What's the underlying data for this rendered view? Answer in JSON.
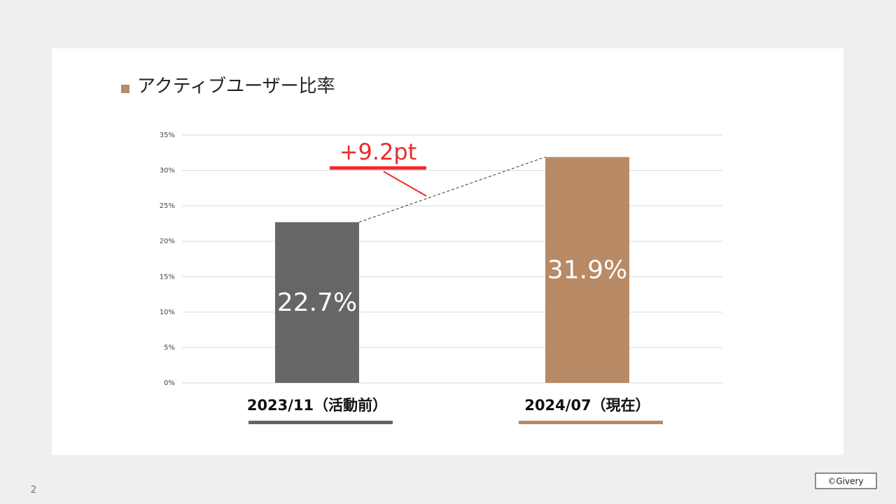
{
  "chart_data": {
    "type": "bar",
    "legend": "アクティブユーザー比率",
    "legend_color": "#b88a66",
    "categories": [
      "2023/11（活動前）",
      "2024/07（現在）"
    ],
    "values": [
      22.7,
      31.9
    ],
    "value_labels": [
      "22.7%",
      "31.9%"
    ],
    "colors": [
      "#666666",
      "#b88a66"
    ],
    "ylim": [
      0,
      35
    ],
    "yticks": [
      {
        "value": 0,
        "label": "0%"
      },
      {
        "value": 5,
        "label": "5%"
      },
      {
        "value": 10,
        "label": "10%"
      },
      {
        "value": 15,
        "label": "15%"
      },
      {
        "value": 20,
        "label": "20%"
      },
      {
        "value": 25,
        "label": "25%"
      },
      {
        "value": 30,
        "label": "30%"
      },
      {
        "value": 35,
        "label": "35%"
      }
    ],
    "grid": true,
    "annotation": "+9.2pt",
    "annotation_color": "#ee2a2a"
  },
  "page_number": 2,
  "copyright": "©Givery"
}
